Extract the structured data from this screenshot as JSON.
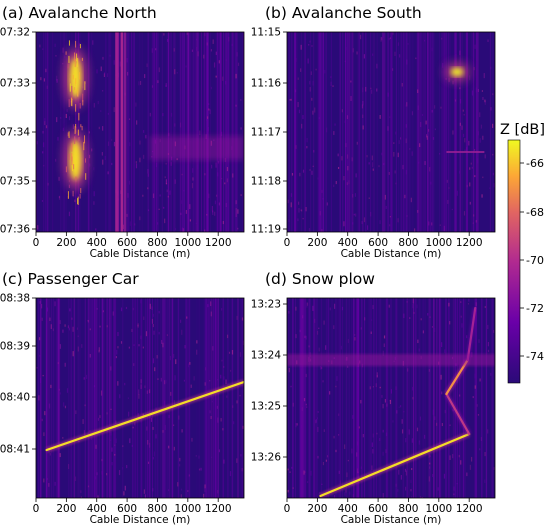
{
  "figure": {
    "colorbar": {
      "label": "Z [dB]",
      "ticks": [
        -66,
        -68,
        -70,
        -72,
        -74
      ]
    }
  },
  "chart_data": [
    {
      "type": "heatmap",
      "title": "(a) Avalanche North",
      "xlabel": "Cable Distance (m)",
      "xlim": [
        0,
        1370
      ],
      "xticks": [
        0,
        200,
        400,
        600,
        800,
        1000,
        1200
      ],
      "yticks": [
        "07:32",
        "07:33",
        "07:34",
        "07:35",
        "07:36"
      ],
      "features": [
        {
          "kind": "blob",
          "x": 260,
          "y_frac": 0.23,
          "intensity": 0.95
        },
        {
          "kind": "blob",
          "x": 260,
          "y_frac": 0.64,
          "intensity": 0.95
        },
        {
          "kind": "band",
          "x_from": 520,
          "x_to": 590,
          "intensity": 0.5
        },
        {
          "kind": "patch",
          "x_from": 750,
          "x_to": 1370,
          "y_frac": 0.58,
          "intensity": 0.4
        }
      ]
    },
    {
      "type": "heatmap",
      "title": "(b) Avalanche South",
      "xlabel": "Cable Distance (m)",
      "xlim": [
        0,
        1370
      ],
      "xticks": [
        0,
        200,
        400,
        600,
        800,
        1000,
        1200
      ],
      "yticks": [
        "11:15",
        "11:16",
        "11:17",
        "11:18",
        "11:19"
      ],
      "features": [
        {
          "kind": "blob",
          "x": 1120,
          "y_frac": 0.2,
          "intensity": 1.0
        },
        {
          "kind": "line",
          "x_from": 1050,
          "x_to": 1300,
          "y_frac": 0.6,
          "intensity": 0.45
        }
      ]
    },
    {
      "type": "heatmap",
      "title": "(c) Passenger Car",
      "xlabel": "Cable Distance (m)",
      "xlim": [
        0,
        1370
      ],
      "xticks": [
        0,
        200,
        400,
        600,
        800,
        1000,
        1200
      ],
      "yticks": [
        "08:38",
        "08:39",
        "08:40",
        "08:41"
      ],
      "features": [
        {
          "kind": "track",
          "x_from": 70,
          "y_from_frac": 0.76,
          "x_to": 1370,
          "y_to_frac": 0.42,
          "intensity": 0.95
        }
      ]
    },
    {
      "type": "heatmap",
      "title": "(d) Snow plow",
      "xlabel": "Cable Distance (m)",
      "xlim": [
        0,
        1370
      ],
      "xticks": [
        0,
        200,
        400,
        600,
        800,
        1000,
        1200
      ],
      "yticks": [
        "13:23",
        "13:24",
        "13:25",
        "13:26"
      ],
      "features": [
        {
          "kind": "track",
          "x_from": 220,
          "y_from_frac": 0.99,
          "x_to": 1200,
          "y_to_frac": 0.68,
          "intensity": 0.95
        },
        {
          "kind": "track",
          "x_from": 1200,
          "y_from_frac": 0.68,
          "x_to": 1050,
          "y_to_frac": 0.48,
          "intensity": 0.55
        },
        {
          "kind": "track",
          "x_from": 1050,
          "y_from_frac": 0.48,
          "x_to": 1190,
          "y_to_frac": 0.31,
          "intensity": 0.8
        },
        {
          "kind": "track",
          "x_from": 1190,
          "y_from_frac": 0.31,
          "x_to": 1240,
          "y_to_frac": 0.05,
          "intensity": 0.45
        },
        {
          "kind": "band_h",
          "y_frac": 0.31,
          "x_from": 0,
          "x_to": 1370,
          "intensity": 0.4
        }
      ]
    }
  ]
}
